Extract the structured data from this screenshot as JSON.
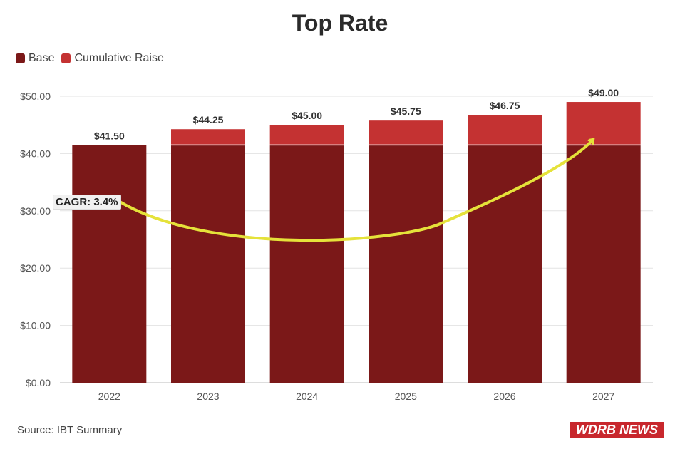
{
  "chart_data": {
    "type": "bar",
    "stacked": true,
    "title": "Top Rate",
    "categories": [
      "2022",
      "2023",
      "2024",
      "2025",
      "2026",
      "2027"
    ],
    "series": [
      {
        "name": "Base",
        "values": [
          41.5,
          41.5,
          41.5,
          41.5,
          41.5,
          41.5
        ],
        "color": "#7b1818"
      },
      {
        "name": "Cumulative Raise",
        "values": [
          0,
          2.75,
          3.5,
          4.25,
          5.25,
          7.5
        ],
        "color": "#c43232"
      }
    ],
    "totals_labels": [
      "$41.50",
      "$44.25",
      "$45.00",
      "$45.75",
      "$46.75",
      "$49.00"
    ],
    "ylim": [
      0,
      50
    ],
    "yticks": [
      0,
      10,
      20,
      30,
      40,
      50
    ],
    "ytick_labels": [
      "$0.00",
      "$10.00",
      "$20.00",
      "$30.00",
      "$40.00",
      "$50.00"
    ],
    "xlabel": "",
    "ylabel": "",
    "legend_position": "top-left",
    "annotation": {
      "text": "CAGR: 3.4%",
      "arrow_color": "#e5e23a"
    }
  },
  "source": "Source: IBT Summary",
  "logo": "WDRB NEWS"
}
